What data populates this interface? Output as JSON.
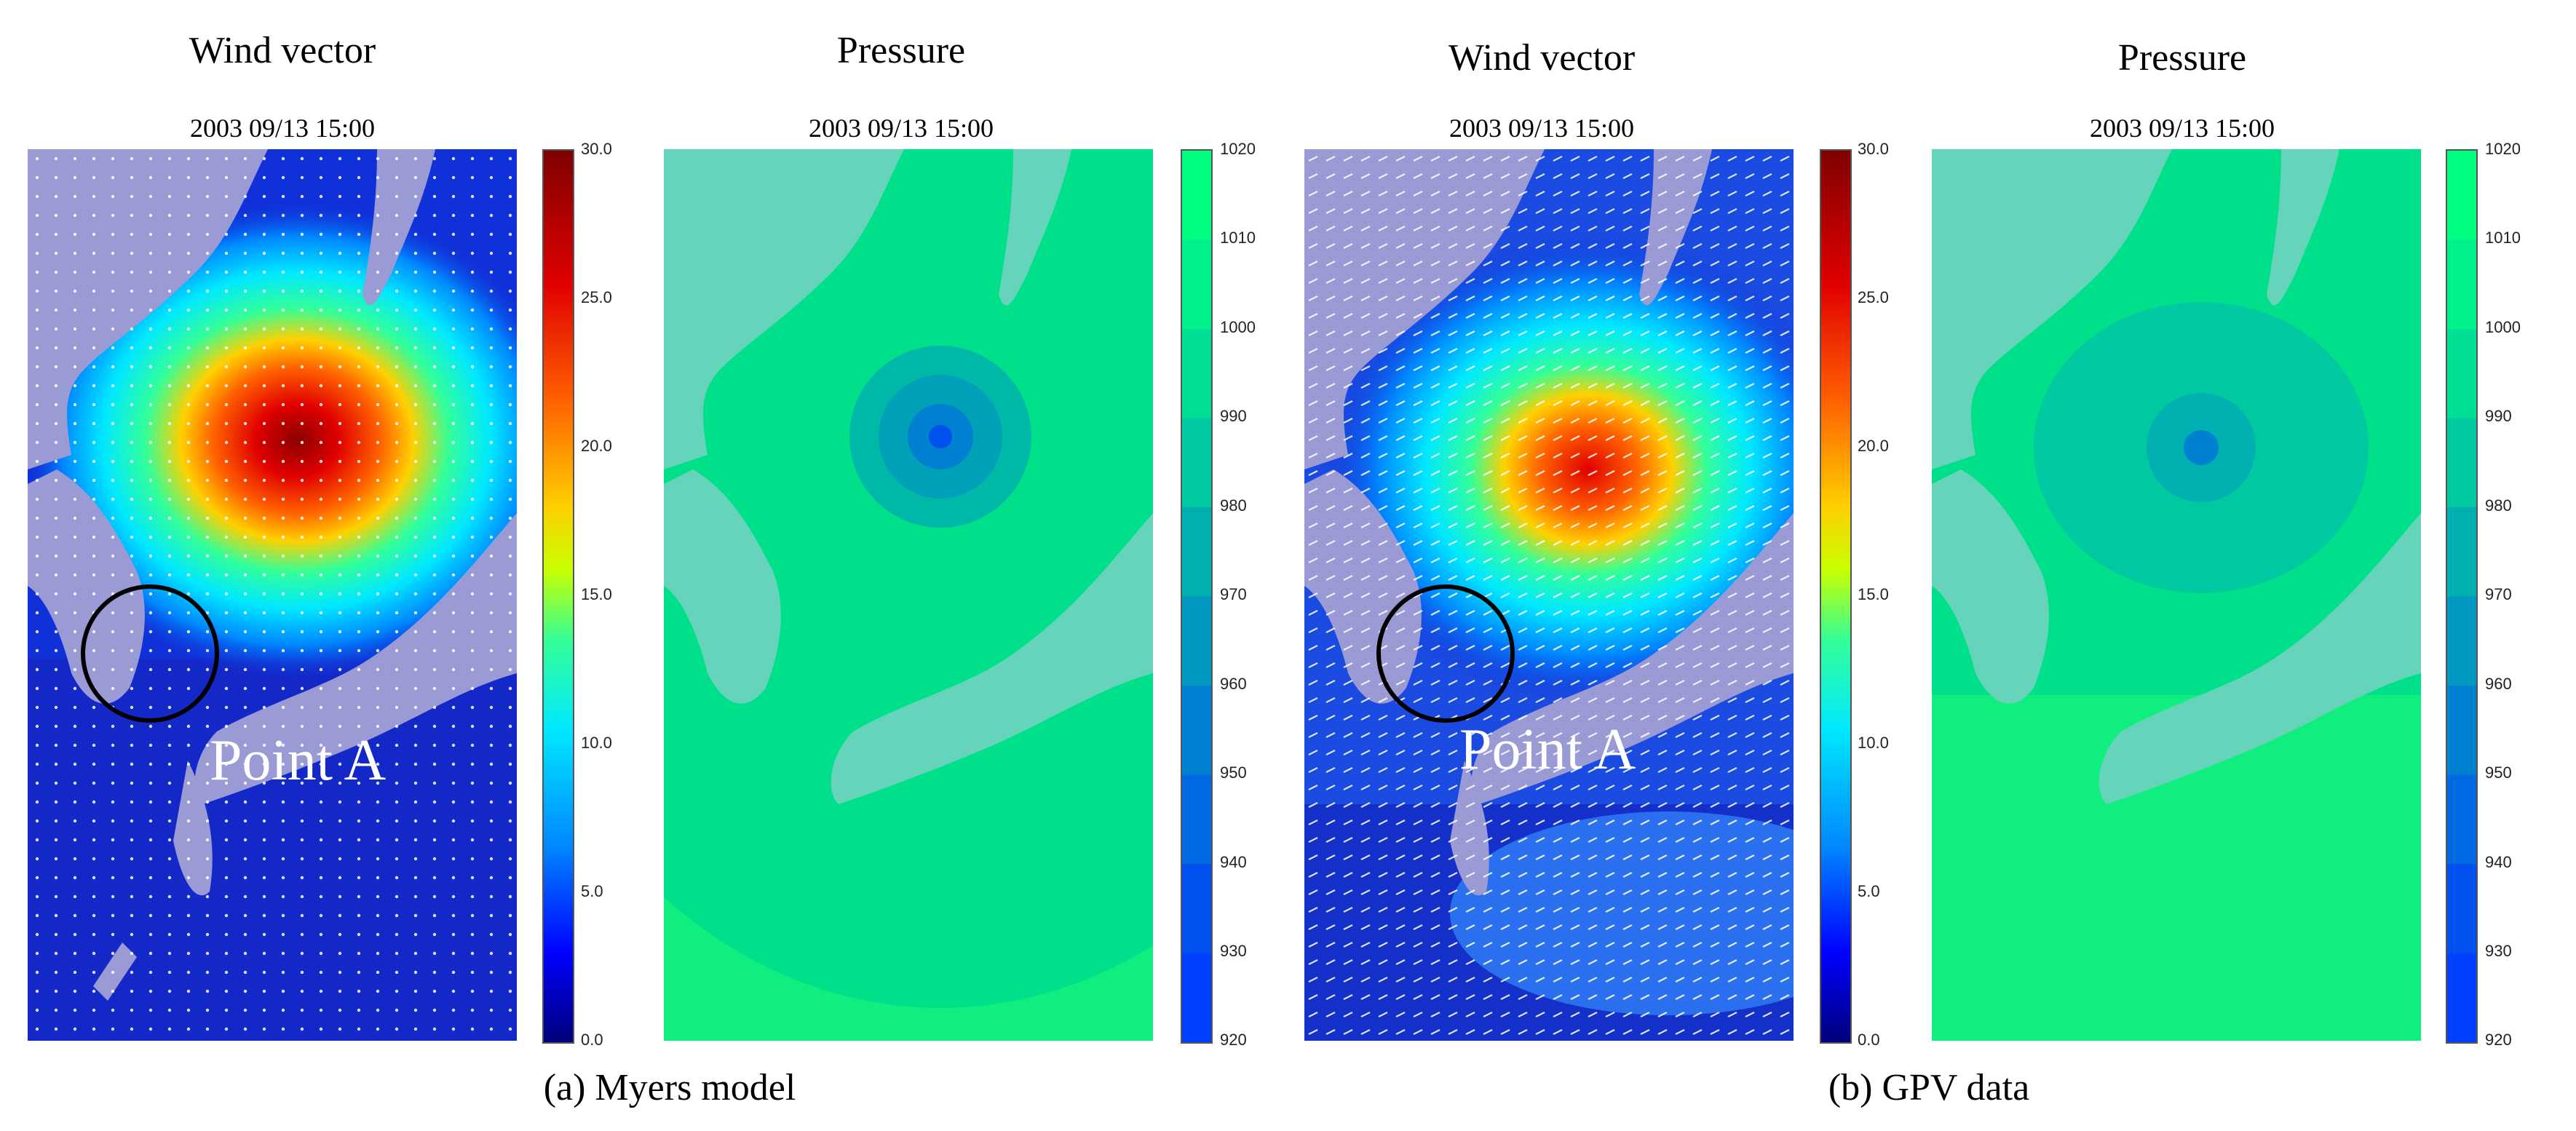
{
  "figure": {
    "groups": [
      {
        "caption": "(a) Myers model",
        "wind": {
          "title": "Wind vector",
          "date": "2003 09/13 15:00",
          "annotation": "Point A"
        },
        "pressure": {
          "title": "Pressure",
          "date": "2003 09/13 15:00"
        }
      },
      {
        "caption": "(b) GPV data",
        "wind": {
          "title": "Wind vector",
          "date": "2003 09/13 15:00",
          "annotation": "Point A"
        },
        "pressure": {
          "title": "Pressure",
          "date": "2003 09/13 15:00"
        }
      }
    ],
    "wind_colorbar": {
      "ticks": [
        "30.0",
        "25.0",
        "20.0",
        "15.0",
        "10.0",
        "5.0",
        "0.0"
      ],
      "colors": [
        "#00007a",
        "#0000ff",
        "#0088ff",
        "#00e8ff",
        "#33ff99",
        "#c8ff00",
        "#ffd000",
        "#ff6000",
        "#e00000",
        "#800000"
      ]
    },
    "pressure_colorbar": {
      "ticks": [
        "1020",
        "1010",
        "1000",
        "990",
        "980",
        "970",
        "960",
        "950",
        "940",
        "930",
        "920"
      ],
      "colors": [
        "#00ff80",
        "#00f08a",
        "#00e094",
        "#00c8a0",
        "#00b0b0",
        "#0098c0",
        "#0080d0",
        "#0068e0",
        "#0050f0",
        "#0040ff"
      ]
    },
    "colors": {
      "land": "#9a9ad4",
      "sea_calm": "#1030d8",
      "pressure_land": "#66d4bb",
      "pressure_sea": "#10ee80"
    }
  }
}
